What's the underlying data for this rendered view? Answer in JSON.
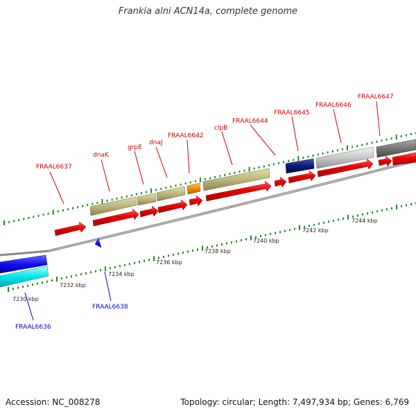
{
  "title": "Frankia alni ACN14a, complete genome",
  "footer": {
    "accession": "Accession: NC_008278",
    "summary": "Topology: circular; Length: 7,497,934 bp; Genes: 6,769"
  },
  "ticks": [
    "7230 kbp",
    "7232 kbp",
    "7234 kbp",
    "7236 kbp",
    "7238 kbp",
    "7240 kbp",
    "7242 kbp",
    "7244 kbp"
  ],
  "genes_forward": [
    "FRAAL6637",
    "dnaK",
    "grpE",
    "dnaJ",
    "FRAAL6642",
    "clpB",
    "FRAAL6644",
    "FRAAL6645",
    "FRAAL6646",
    "FRAAL6647"
  ],
  "genes_reverse": [
    "FRAAL6636",
    "FRAAL6638"
  ],
  "colors": {
    "forward_gene": "#ee0000",
    "reverse_gene": "#0000ee",
    "feature_olive": "#bdb67c",
    "feature_orange": "#f08c00",
    "feature_navy": "#0b1a7a",
    "feature_silver": "#c8c8c8",
    "feature_gray": "#777777",
    "feature_cyan": "#00e0ee",
    "tick_green": "#1a8a1a",
    "backbone": "#888888"
  }
}
